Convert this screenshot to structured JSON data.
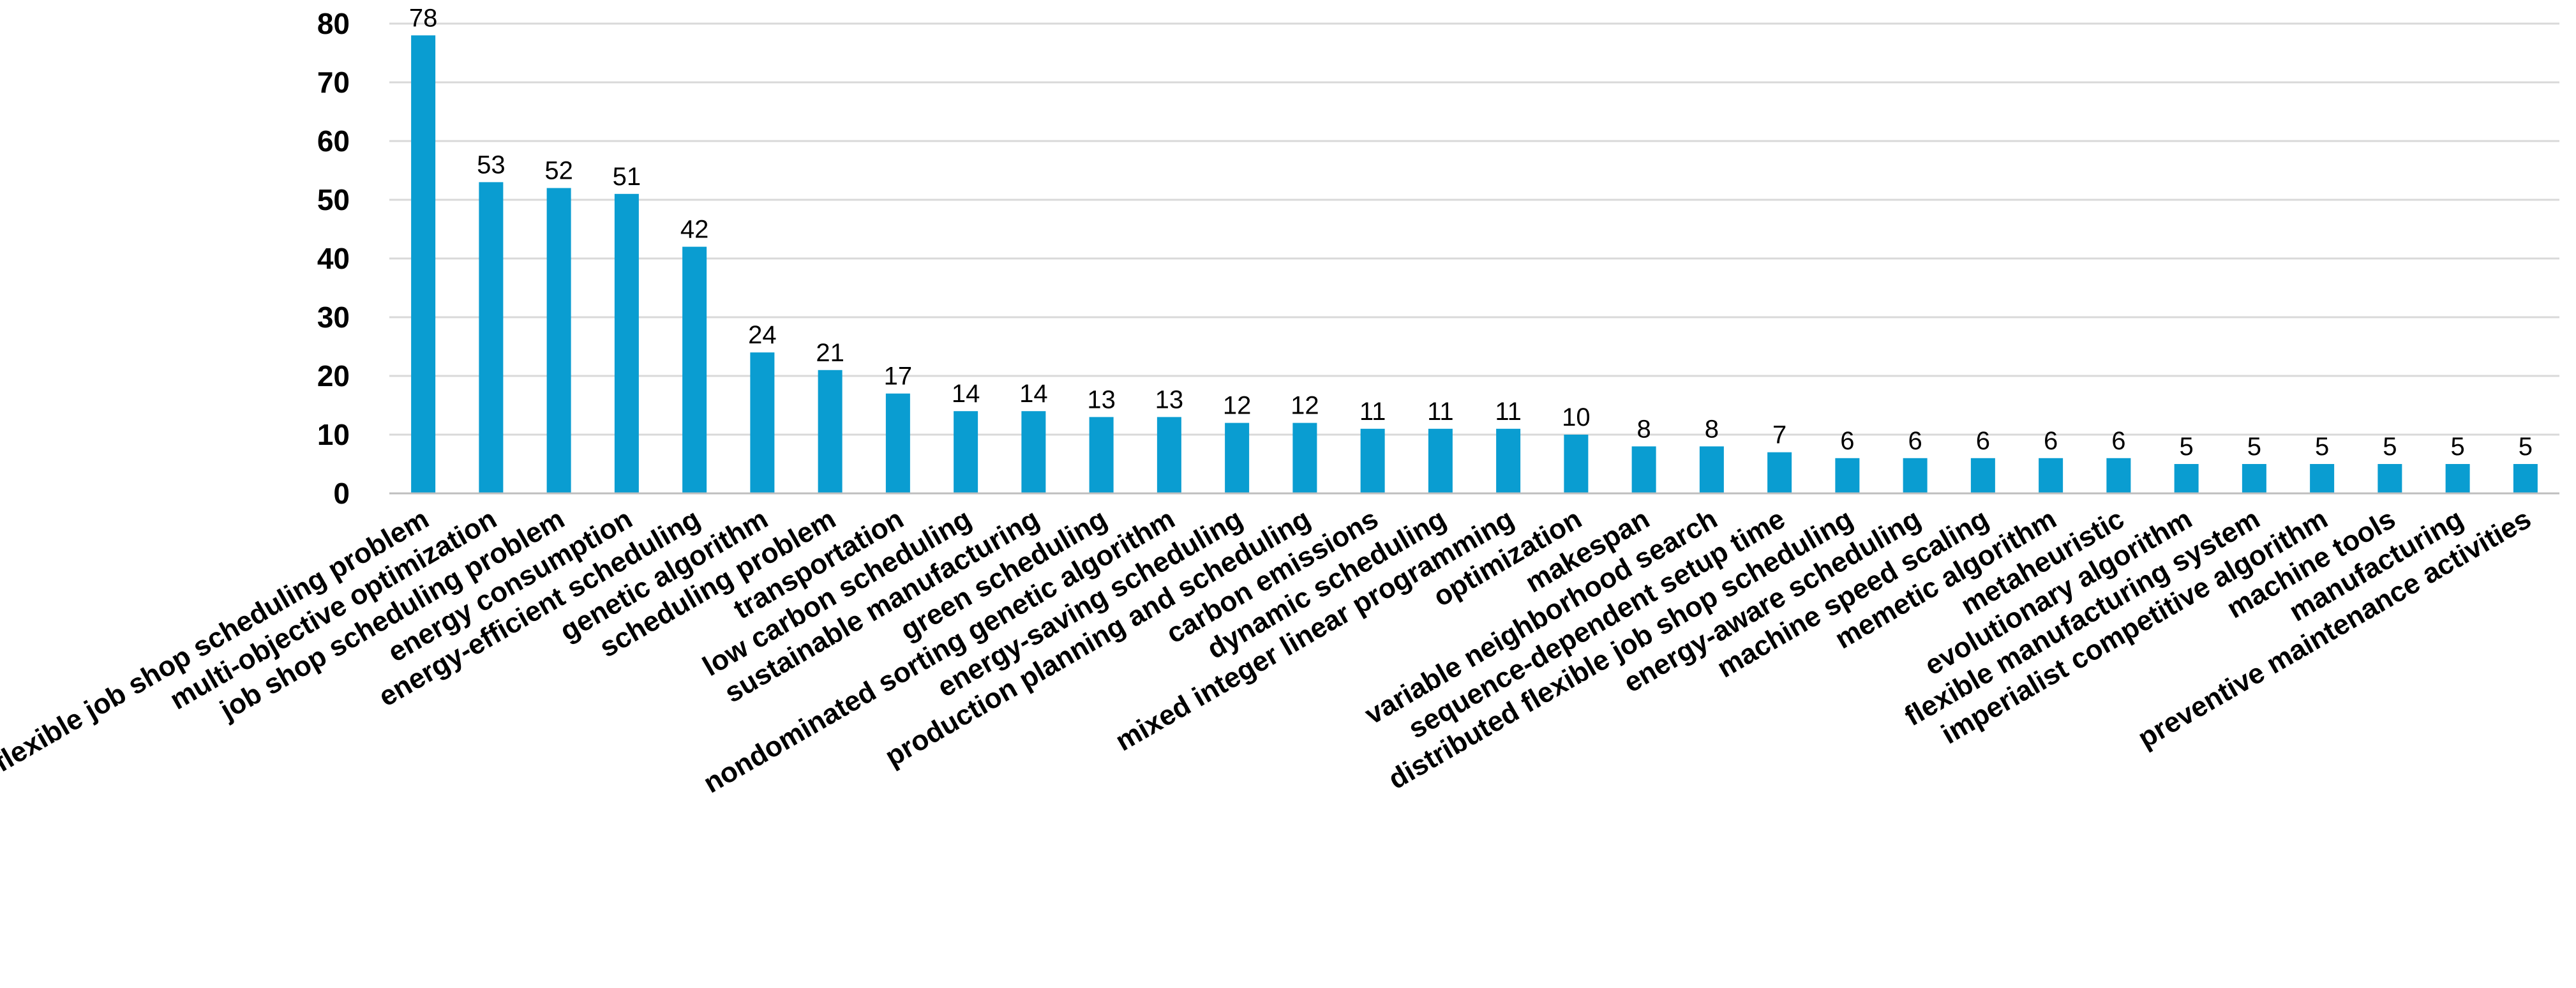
{
  "chart_data": {
    "type": "bar",
    "title": "",
    "xlabel": "",
    "ylabel": "",
    "ylim": [
      0,
      80
    ],
    "yticks": [
      0,
      10,
      20,
      30,
      40,
      50,
      60,
      70,
      80
    ],
    "grid": true,
    "bar_color": "#0a9dd1",
    "categories": [
      "flexible job shop scheduling problem",
      "multi-objective optimization",
      "job shop scheduling problem",
      "energy consumption",
      "energy-efficient scheduling",
      "genetic algorithm",
      "scheduling problem",
      "transportation",
      "low carbon scheduling",
      "sustainable manufacturing",
      "green scheduling",
      "nondominated sorting genetic algorithm",
      "energy-saving scheduling",
      "production planning and scheduling",
      "carbon emissions",
      "dynamic scheduling",
      "mixed integer linear programming",
      "optimization",
      "makespan",
      "variable neighborhood search",
      "sequence-dependent setup time",
      "distributed flexible job shop scheduling",
      "energy-aware scheduling",
      "machine speed scaling",
      "memetic algorithm",
      "metaheuristic",
      "evolutionary algorithm",
      "flexible manufacturing system",
      "imperialist competitive algorithm",
      "machine tools",
      "manufacturing",
      "preventive maintenance activities"
    ],
    "values": [
      78,
      53,
      52,
      51,
      42,
      24,
      21,
      17,
      14,
      14,
      13,
      13,
      12,
      12,
      11,
      11,
      11,
      10,
      8,
      8,
      7,
      6,
      6,
      6,
      6,
      6,
      5,
      5,
      5,
      5,
      5,
      5
    ]
  }
}
